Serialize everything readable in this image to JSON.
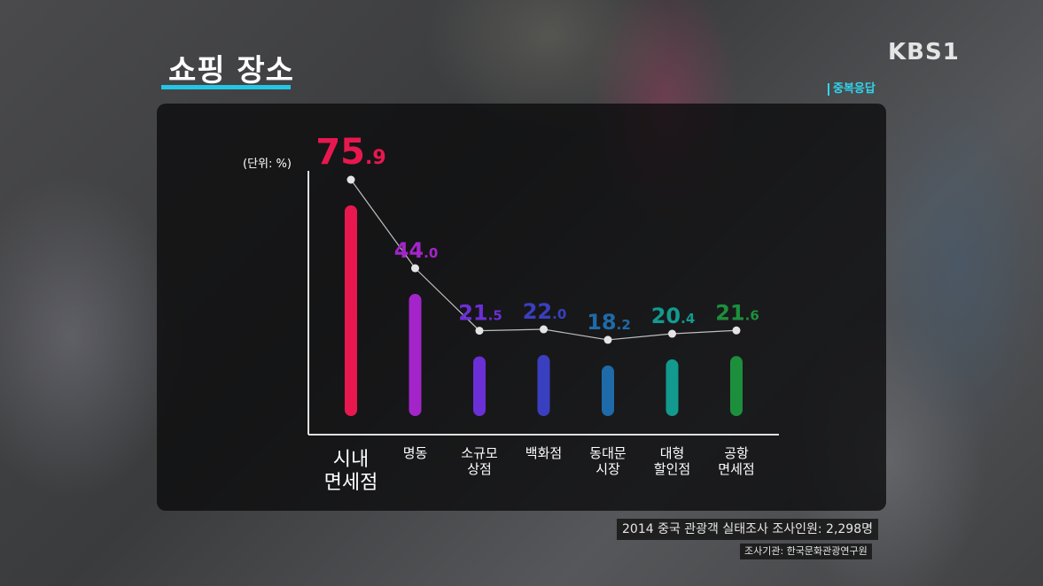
{
  "title": "쇼핑 장소",
  "broadcaster": "KBS1",
  "note": "중복응답",
  "source": {
    "survey": "2014 중국 관광객 실태조사  조사인원: 2,298명",
    "org": "조사기관: 한국문화관광연구원"
  },
  "colors": {
    "accent": "#22c7e6",
    "bars": [
      "#e8184f",
      "#a325c9",
      "#6b2fd6",
      "#3a3fbf",
      "#1f6aa8",
      "#139a8e",
      "#1d8f3c"
    ]
  },
  "chart_data": {
    "type": "bar",
    "unit_label": "(단위: %)",
    "categories": [
      [
        "시내",
        "면세점"
      ],
      [
        "명동"
      ],
      [
        "소규모",
        "상점"
      ],
      [
        "백화점"
      ],
      [
        "동대문",
        "시장"
      ],
      [
        "대형",
        "할인점"
      ],
      [
        "공항",
        "면세점"
      ]
    ],
    "values": [
      75.9,
      44.0,
      21.5,
      22.0,
      18.2,
      20.4,
      21.6
    ],
    "value_labels": [
      [
        "75",
        ".9"
      ],
      [
        "44",
        ".0"
      ],
      [
        "21",
        ".5"
      ],
      [
        "22",
        ".0"
      ],
      [
        "18",
        ".2"
      ],
      [
        "20",
        ".4"
      ],
      [
        "21",
        ".6"
      ]
    ],
    "ylim": [
      0,
      80
    ],
    "grid": false,
    "connecting_line": true
  }
}
